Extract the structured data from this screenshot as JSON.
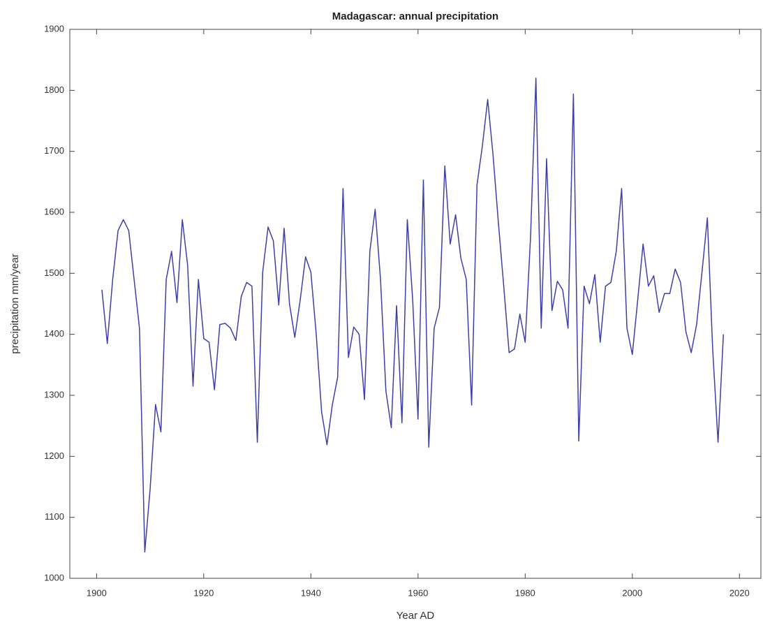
{
  "chart_data": {
    "type": "line",
    "title": "Madagascar: annual precipitation",
    "x_label": "Year AD",
    "y_label": "precipitation mm/year",
    "x": [
      1901,
      1902,
      1903,
      1904,
      1905,
      1906,
      1907,
      1908,
      1909,
      1910,
      1911,
      1912,
      1913,
      1914,
      1915,
      1916,
      1917,
      1918,
      1919,
      1920,
      1921,
      1922,
      1923,
      1924,
      1925,
      1926,
      1927,
      1928,
      1929,
      1930,
      1931,
      1932,
      1933,
      1934,
      1935,
      1936,
      1937,
      1938,
      1939,
      1940,
      1941,
      1942,
      1943,
      1944,
      1945,
      1946,
      1947,
      1948,
      1949,
      1950,
      1951,
      1952,
      1953,
      1954,
      1955,
      1956,
      1957,
      1958,
      1959,
      1960,
      1961,
      1962,
      1963,
      1964,
      1965,
      1966,
      1967,
      1968,
      1969,
      1970,
      1971,
      1972,
      1973,
      1974,
      1975,
      1976,
      1977,
      1978,
      1979,
      1980,
      1981,
      1982,
      1983,
      1984,
      1985,
      1986,
      1987,
      1988,
      1989,
      1990,
      1991,
      1992,
      1993,
      1994,
      1995,
      1996,
      1997,
      1998,
      1999,
      2000,
      2001,
      2002,
      2003,
      2004,
      2005,
      2006,
      2007,
      2008,
      2009,
      2010,
      2011,
      2012,
      2013,
      2014,
      2015,
      2016,
      2017
    ],
    "series": [
      {
        "color": "#3f3fa8",
        "values": [
          1473,
          1385,
          1490,
          1570,
          1588,
          1570,
          1490,
          1410,
          1043,
          1147,
          1285,
          1240,
          1490,
          1536,
          1452,
          1588,
          1513,
          1315,
          1490,
          1393,
          1387,
          1309,
          1416,
          1418,
          1410,
          1390,
          1462,
          1485,
          1479,
          1223,
          1502,
          1576,
          1553,
          1448,
          1574,
          1450,
          1395,
          1456,
          1527,
          1502,
          1400,
          1273,
          1219,
          1284,
          1330,
          1639,
          1362,
          1412,
          1400,
          1293,
          1536,
          1605,
          1490,
          1307,
          1247,
          1447,
          1255,
          1588,
          1456,
          1261,
          1653,
          1215,
          1410,
          1444,
          1676,
          1548,
          1596,
          1525,
          1490,
          1284,
          1645,
          1708,
          1785,
          1694,
          1582,
          1479,
          1370,
          1376,
          1433,
          1387,
          1559,
          1820,
          1410,
          1688,
          1439,
          1487,
          1473,
          1410,
          1794,
          1225,
          1479,
          1450,
          1498,
          1387,
          1479,
          1485,
          1536,
          1639,
          1410,
          1367,
          1456,
          1548,
          1479,
          1496,
          1436,
          1467,
          1467,
          1507,
          1485,
          1404,
          1370,
          1416,
          1502,
          1591,
          1376,
          1223,
          1400
        ]
      }
    ],
    "xlim": [
      1895,
      2024
    ],
    "ylim": [
      1000,
      1900
    ],
    "xticks": [
      1900,
      1920,
      1940,
      1960,
      1980,
      2000,
      2020
    ],
    "yticks": [
      1000,
      1100,
      1200,
      1300,
      1400,
      1500,
      1600,
      1700,
      1800,
      1900
    ],
    "grid": false
  }
}
